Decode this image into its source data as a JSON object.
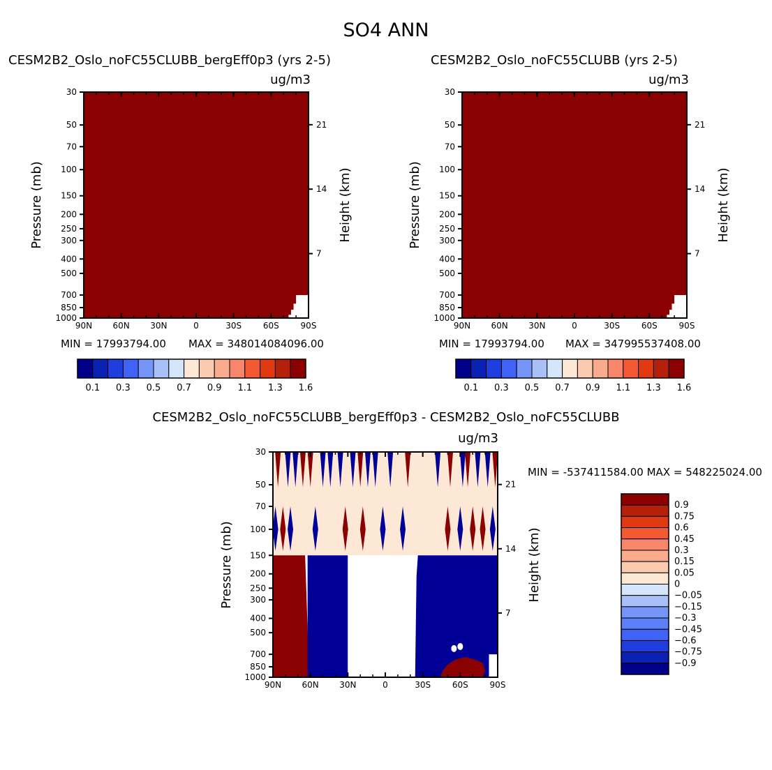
{
  "page_title": "SO4 ANN",
  "colors": {
    "bg": "#ffffff",
    "frame": "#000000",
    "field_dark_red": "#8b0000",
    "field_dark_blue": "#000096",
    "field_light_peach": "#fde8d6",
    "missing": "#ffffff"
  },
  "chart_data": [
    {
      "id": "panel1",
      "type": "heatmap",
      "title": "CESM2B2_Oslo_noFC55CLUBB_bergEff0p3 (yrs 2-5)",
      "units": "ug/m3",
      "ylabel": "Pressure (mb)",
      "ylabel_right": "Height (km)",
      "x_ticks": [
        "90N",
        "60N",
        "30N",
        "0",
        "30S",
        "60S",
        "90S"
      ],
      "pressure_ticks": [
        30,
        50,
        70,
        100,
        150,
        200,
        250,
        300,
        400,
        500,
        700,
        850,
        1000
      ],
      "height_ticks": [
        7,
        14,
        21
      ],
      "ylim": [
        1000,
        30
      ],
      "min_label": "MIN = 17993794.00",
      "max_label": "MAX = 348014084096.00",
      "field": "entirely above top contour level (dark red), missing near 80S-90S below 700 mb",
      "colorbar": {
        "orientation": "horizontal",
        "colors": [
          "#00008b",
          "#0a22b4",
          "#1e3ee0",
          "#3f63f7",
          "#7695f9",
          "#a8bff8",
          "#d5e6fa",
          "#fde8d6",
          "#fbcbb0",
          "#f9ab8e",
          "#f7866a",
          "#f45a32",
          "#e13a10",
          "#b5200a",
          "#8b0000"
        ],
        "labels": [
          "0.1",
          "0.3",
          "0.5",
          "0.7",
          "0.9",
          "1.1",
          "1.3",
          "1.6"
        ]
      }
    },
    {
      "id": "panel2",
      "type": "heatmap",
      "title": "CESM2B2_Oslo_noFC55CLUBB (yrs 2-5)",
      "units": "ug/m3",
      "ylabel": "Pressure (mb)",
      "ylabel_right": "Height (km)",
      "x_ticks": [
        "90N",
        "60N",
        "30N",
        "0",
        "30S",
        "60S",
        "90S"
      ],
      "pressure_ticks": [
        30,
        50,
        70,
        100,
        150,
        200,
        250,
        300,
        400,
        500,
        700,
        850,
        1000
      ],
      "height_ticks": [
        7,
        14,
        21
      ],
      "ylim": [
        1000,
        30
      ],
      "min_label": "MIN = 17993794.00",
      "max_label": "MAX = 347995537408.00",
      "field": "entirely above top contour level (dark red), missing near 80S-90S below 700 mb",
      "colorbar": {
        "orientation": "horizontal",
        "colors": [
          "#00008b",
          "#0a22b4",
          "#1e3ee0",
          "#3f63f7",
          "#7695f9",
          "#a8bff8",
          "#d5e6fa",
          "#fde8d6",
          "#fbcbb0",
          "#f9ab8e",
          "#f7866a",
          "#f45a32",
          "#e13a10",
          "#b5200a",
          "#8b0000"
        ],
        "labels": [
          "0.1",
          "0.3",
          "0.5",
          "0.7",
          "0.9",
          "1.1",
          "1.3",
          "1.6"
        ]
      }
    },
    {
      "id": "panel3",
      "type": "heatmap",
      "title": "CESM2B2_Oslo_noFC55CLUBB_bergEff0p3 - CESM2B2_Oslo_noFC55CLUBB",
      "units": "ug/m3",
      "ylabel": "Pressure (mb)",
      "ylabel_right": "Height (km)",
      "x_ticks": [
        "90N",
        "60N",
        "30N",
        "0",
        "30S",
        "60S",
        "90S"
      ],
      "pressure_ticks": [
        30,
        50,
        70,
        100,
        150,
        200,
        250,
        300,
        400,
        500,
        700,
        850,
        1000
      ],
      "height_ticks": [
        7,
        14,
        21
      ],
      "ylim": [
        1000,
        30
      ],
      "minmax_label": "MIN = -537411584.00   MAX = 548225024.00",
      "field": "difference field: alternating red/blue spikes 30-150 mb over light peach background; below 150 mb dark red 90N-62N, dark blue 60N-30N, missing 30N-25S, dark blue 25S-90S with red patch near 50S-80S low levels",
      "colorbar": {
        "orientation": "vertical",
        "colors": [
          "#00008b",
          "#0a22b4",
          "#1e3ee0",
          "#3f63f7",
          "#5c80f8",
          "#7695f9",
          "#a8bff8",
          "#d5e6fa",
          "#fde8d6",
          "#fbcbb0",
          "#f9ab8e",
          "#f7866a",
          "#f45a32",
          "#e13a10",
          "#b5200a",
          "#8b0000"
        ],
        "labels": [
          "0.9",
          "0.75",
          "0.6",
          "0.45",
          "0.3",
          "0.15",
          "0.05",
          "0",
          "−0.05",
          "−0.15",
          "−0.3",
          "−0.45",
          "−0.6",
          "−0.75",
          "−0.9"
        ]
      }
    }
  ]
}
